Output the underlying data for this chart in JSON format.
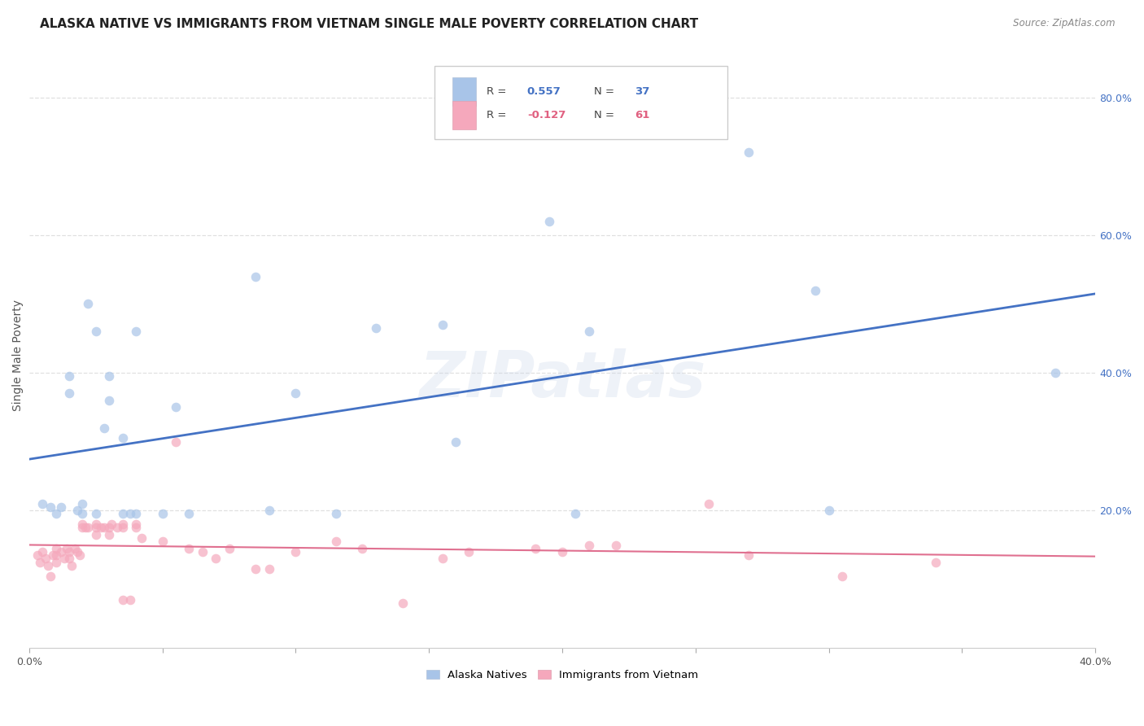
{
  "title": "ALASKA NATIVE VS IMMIGRANTS FROM VIETNAM SINGLE MALE POVERTY CORRELATION CHART",
  "source": "Source: ZipAtlas.com",
  "ylabel": "Single Male Poverty",
  "xlim": [
    0.0,
    0.4
  ],
  "ylim": [
    0.0,
    0.85
  ],
  "xticks": [
    0.0,
    0.05,
    0.1,
    0.15,
    0.2,
    0.25,
    0.3,
    0.35,
    0.4
  ],
  "xticklabels": [
    "0.0%",
    "",
    "",
    "",
    "",
    "",
    "",
    "",
    "40.0%"
  ],
  "yticks_right": [
    0.2,
    0.4,
    0.6,
    0.8
  ],
  "yticklabels_right": [
    "20.0%",
    "40.0%",
    "60.0%",
    "80.0%"
  ],
  "blue_R": 0.557,
  "blue_N": 37,
  "pink_R": -0.127,
  "pink_N": 61,
  "blue_color": "#a8c4e8",
  "pink_color": "#f5a8bc",
  "blue_line_color": "#4472c4",
  "pink_line_color": "#e07090",
  "legend_blue_label": "Alaska Natives",
  "legend_pink_label": "Immigrants from Vietnam",
  "blue_x": [
    0.005,
    0.008,
    0.01,
    0.012,
    0.015,
    0.015,
    0.018,
    0.02,
    0.02,
    0.022,
    0.025,
    0.025,
    0.028,
    0.03,
    0.03,
    0.035,
    0.035,
    0.038,
    0.04,
    0.04,
    0.05,
    0.055,
    0.06,
    0.085,
    0.09,
    0.1,
    0.115,
    0.13,
    0.155,
    0.16,
    0.195,
    0.205,
    0.21,
    0.27,
    0.295,
    0.3,
    0.385
  ],
  "blue_y": [
    0.21,
    0.205,
    0.195,
    0.205,
    0.395,
    0.37,
    0.2,
    0.21,
    0.195,
    0.5,
    0.46,
    0.195,
    0.32,
    0.395,
    0.36,
    0.305,
    0.195,
    0.195,
    0.46,
    0.195,
    0.195,
    0.35,
    0.195,
    0.54,
    0.2,
    0.37,
    0.195,
    0.465,
    0.47,
    0.3,
    0.62,
    0.195,
    0.46,
    0.72,
    0.52,
    0.2,
    0.4
  ],
  "pink_x": [
    0.003,
    0.004,
    0.005,
    0.006,
    0.007,
    0.008,
    0.009,
    0.01,
    0.01,
    0.01,
    0.012,
    0.013,
    0.014,
    0.015,
    0.015,
    0.016,
    0.017,
    0.018,
    0.019,
    0.02,
    0.02,
    0.021,
    0.022,
    0.025,
    0.025,
    0.025,
    0.027,
    0.028,
    0.03,
    0.03,
    0.031,
    0.033,
    0.035,
    0.035,
    0.035,
    0.038,
    0.04,
    0.04,
    0.042,
    0.05,
    0.055,
    0.06,
    0.065,
    0.07,
    0.075,
    0.085,
    0.09,
    0.1,
    0.115,
    0.125,
    0.14,
    0.155,
    0.165,
    0.19,
    0.2,
    0.21,
    0.22,
    0.255,
    0.27,
    0.305,
    0.34
  ],
  "pink_y": [
    0.135,
    0.125,
    0.14,
    0.13,
    0.12,
    0.105,
    0.135,
    0.145,
    0.135,
    0.125,
    0.14,
    0.13,
    0.145,
    0.14,
    0.13,
    0.12,
    0.145,
    0.14,
    0.135,
    0.18,
    0.175,
    0.175,
    0.175,
    0.18,
    0.175,
    0.165,
    0.175,
    0.175,
    0.175,
    0.165,
    0.18,
    0.175,
    0.18,
    0.175,
    0.07,
    0.07,
    0.18,
    0.175,
    0.16,
    0.155,
    0.3,
    0.145,
    0.14,
    0.13,
    0.145,
    0.115,
    0.115,
    0.14,
    0.155,
    0.145,
    0.065,
    0.13,
    0.14,
    0.145,
    0.14,
    0.15,
    0.15,
    0.21,
    0.135,
    0.105,
    0.125
  ],
  "background_color": "#ffffff",
  "grid_color": "#e0e0e0",
  "title_fontsize": 11,
  "axis_label_fontsize": 10,
  "tick_fontsize": 9,
  "marker_size": 70,
  "marker_alpha": 0.7,
  "watermark_text": "ZIPatlas",
  "watermark_color": "#c8d4e8",
  "watermark_fontsize": 56,
  "watermark_alpha": 0.3
}
